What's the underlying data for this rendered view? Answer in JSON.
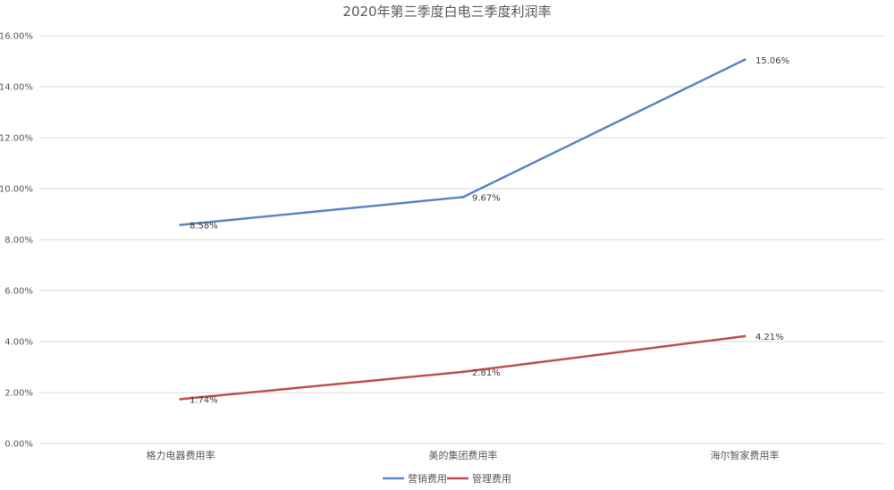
{
  "chart_data": {
    "type": "line",
    "title": "2020年第三季度白电三季度利润率",
    "categories": [
      "格力电器费用率",
      "美的集团费用率",
      "海尔智家费用率"
    ],
    "series": [
      {
        "name": "营销费用",
        "color": "#5b87c2",
        "values": [
          8.58,
          9.67,
          15.06
        ],
        "labels": [
          "8.58%",
          "9.67%",
          "15.06%"
        ]
      },
      {
        "name": "管理费用",
        "color": "#c0504d",
        "values": [
          1.74,
          2.81,
          4.21
        ],
        "labels": [
          "1.74%",
          "2.81%",
          "4.21%"
        ]
      }
    ],
    "y_ticks": [
      "0.00%",
      "2.00%",
      "4.00%",
      "6.00%",
      "8.00%",
      "10.00%",
      "12.00%",
      "14.00%",
      "16.00%"
    ],
    "ylim": [
      0,
      16
    ],
    "grid": true,
    "legend_position": "bottom"
  }
}
